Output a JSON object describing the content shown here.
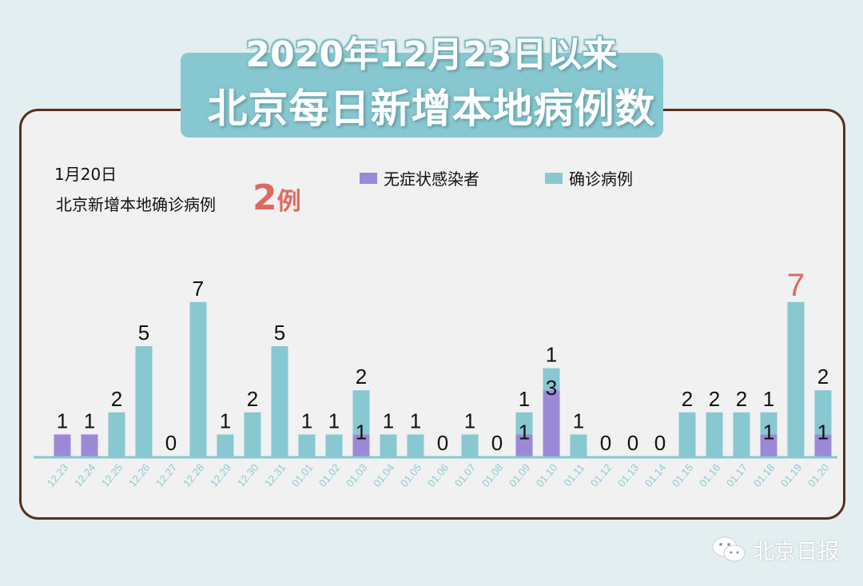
{
  "header": {
    "title_line1": "2020年12月23日以来",
    "title_line2": "北京每日新增本地病例数"
  },
  "info": {
    "date": "1月20日",
    "text": "北京新增本地确诊病例",
    "value": "2",
    "unit": "例"
  },
  "brand": {
    "name": "北京日报",
    "icon": "wechat-icon"
  },
  "chart_data": {
    "type": "bar",
    "stacked": true,
    "categories": [
      "12.23",
      "12.24",
      "12.25",
      "12.26",
      "12.27",
      "12.28",
      "12.29",
      "12.30",
      "12.31",
      "01.01",
      "01.02",
      "01.03",
      "01.04",
      "01.05",
      "01.06",
      "01.07",
      "01.08",
      "01.09",
      "01.10",
      "01.11",
      "01.12",
      "01.13",
      "01.14",
      "01.15",
      "01.16",
      "01.17",
      "01.18",
      "01.19",
      "01.20"
    ],
    "series": [
      {
        "name": "无症状感染者",
        "color": "#9b89d8",
        "values": [
          1,
          1,
          0,
          0,
          0,
          0,
          0,
          0,
          0,
          0,
          0,
          1,
          0,
          0,
          0,
          0,
          0,
          1,
          3,
          0,
          0,
          0,
          0,
          0,
          0,
          0,
          1,
          0,
          1
        ]
      },
      {
        "name": "确诊病例",
        "color": "#88c8d1",
        "values": [
          0,
          0,
          2,
          5,
          0,
          7,
          1,
          2,
          5,
          1,
          1,
          2,
          1,
          1,
          0,
          1,
          0,
          1,
          1,
          1,
          0,
          0,
          0,
          2,
          2,
          2,
          1,
          7,
          2
        ]
      }
    ],
    "highlight": {
      "category": "01.19",
      "color": "#dd6a5f"
    },
    "legend": "top",
    "grid": false,
    "ylim": [
      0,
      7
    ]
  }
}
